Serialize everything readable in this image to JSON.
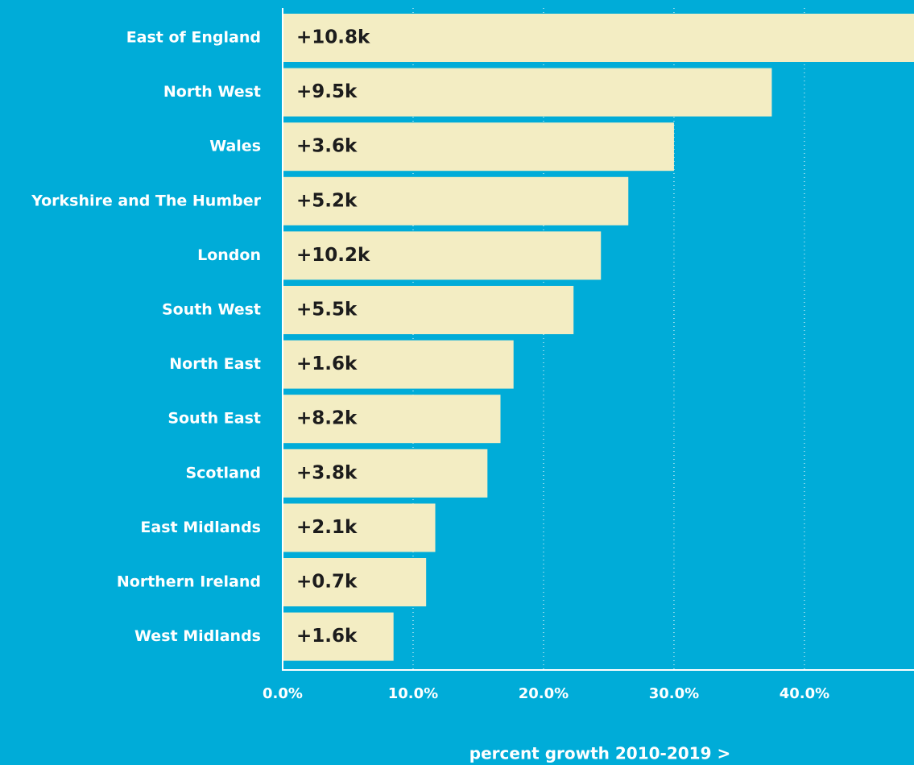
{
  "chart_data": {
    "type": "bar",
    "orientation": "horizontal",
    "categories": [
      "East of England",
      "North West",
      "Wales",
      "Yorkshire and The Humber",
      "London",
      "South West",
      "North East",
      "South East",
      "Scotland",
      "East Midlands",
      "Northern Ireland",
      "West Midlands"
    ],
    "values": [
      48.4,
      37.5,
      30.0,
      26.5,
      24.4,
      22.3,
      17.7,
      16.7,
      15.7,
      11.7,
      11.0,
      8.5
    ],
    "change_labels": [
      "+10.8k",
      "+9.5k",
      "+3.6k",
      "+5.2k",
      "+10.2k",
      "+5.5k",
      "+1.6k",
      "+8.2k",
      "+3.8k",
      "+2.1k",
      "+0.7k",
      "+1.6k"
    ],
    "color": "#f3edc3",
    "xlim": [
      0,
      48.4
    ],
    "xticks": [
      {
        "value": 0,
        "label": "0.0%"
      },
      {
        "value": 10,
        "label": "10.0%"
      },
      {
        "value": 20,
        "label": "20.0%"
      },
      {
        "value": 30,
        "label": "30.0%"
      },
      {
        "value": 40,
        "label": "40.0%"
      }
    ],
    "xlabel": "percent growth 2010-2019 >",
    "grid": true
  }
}
